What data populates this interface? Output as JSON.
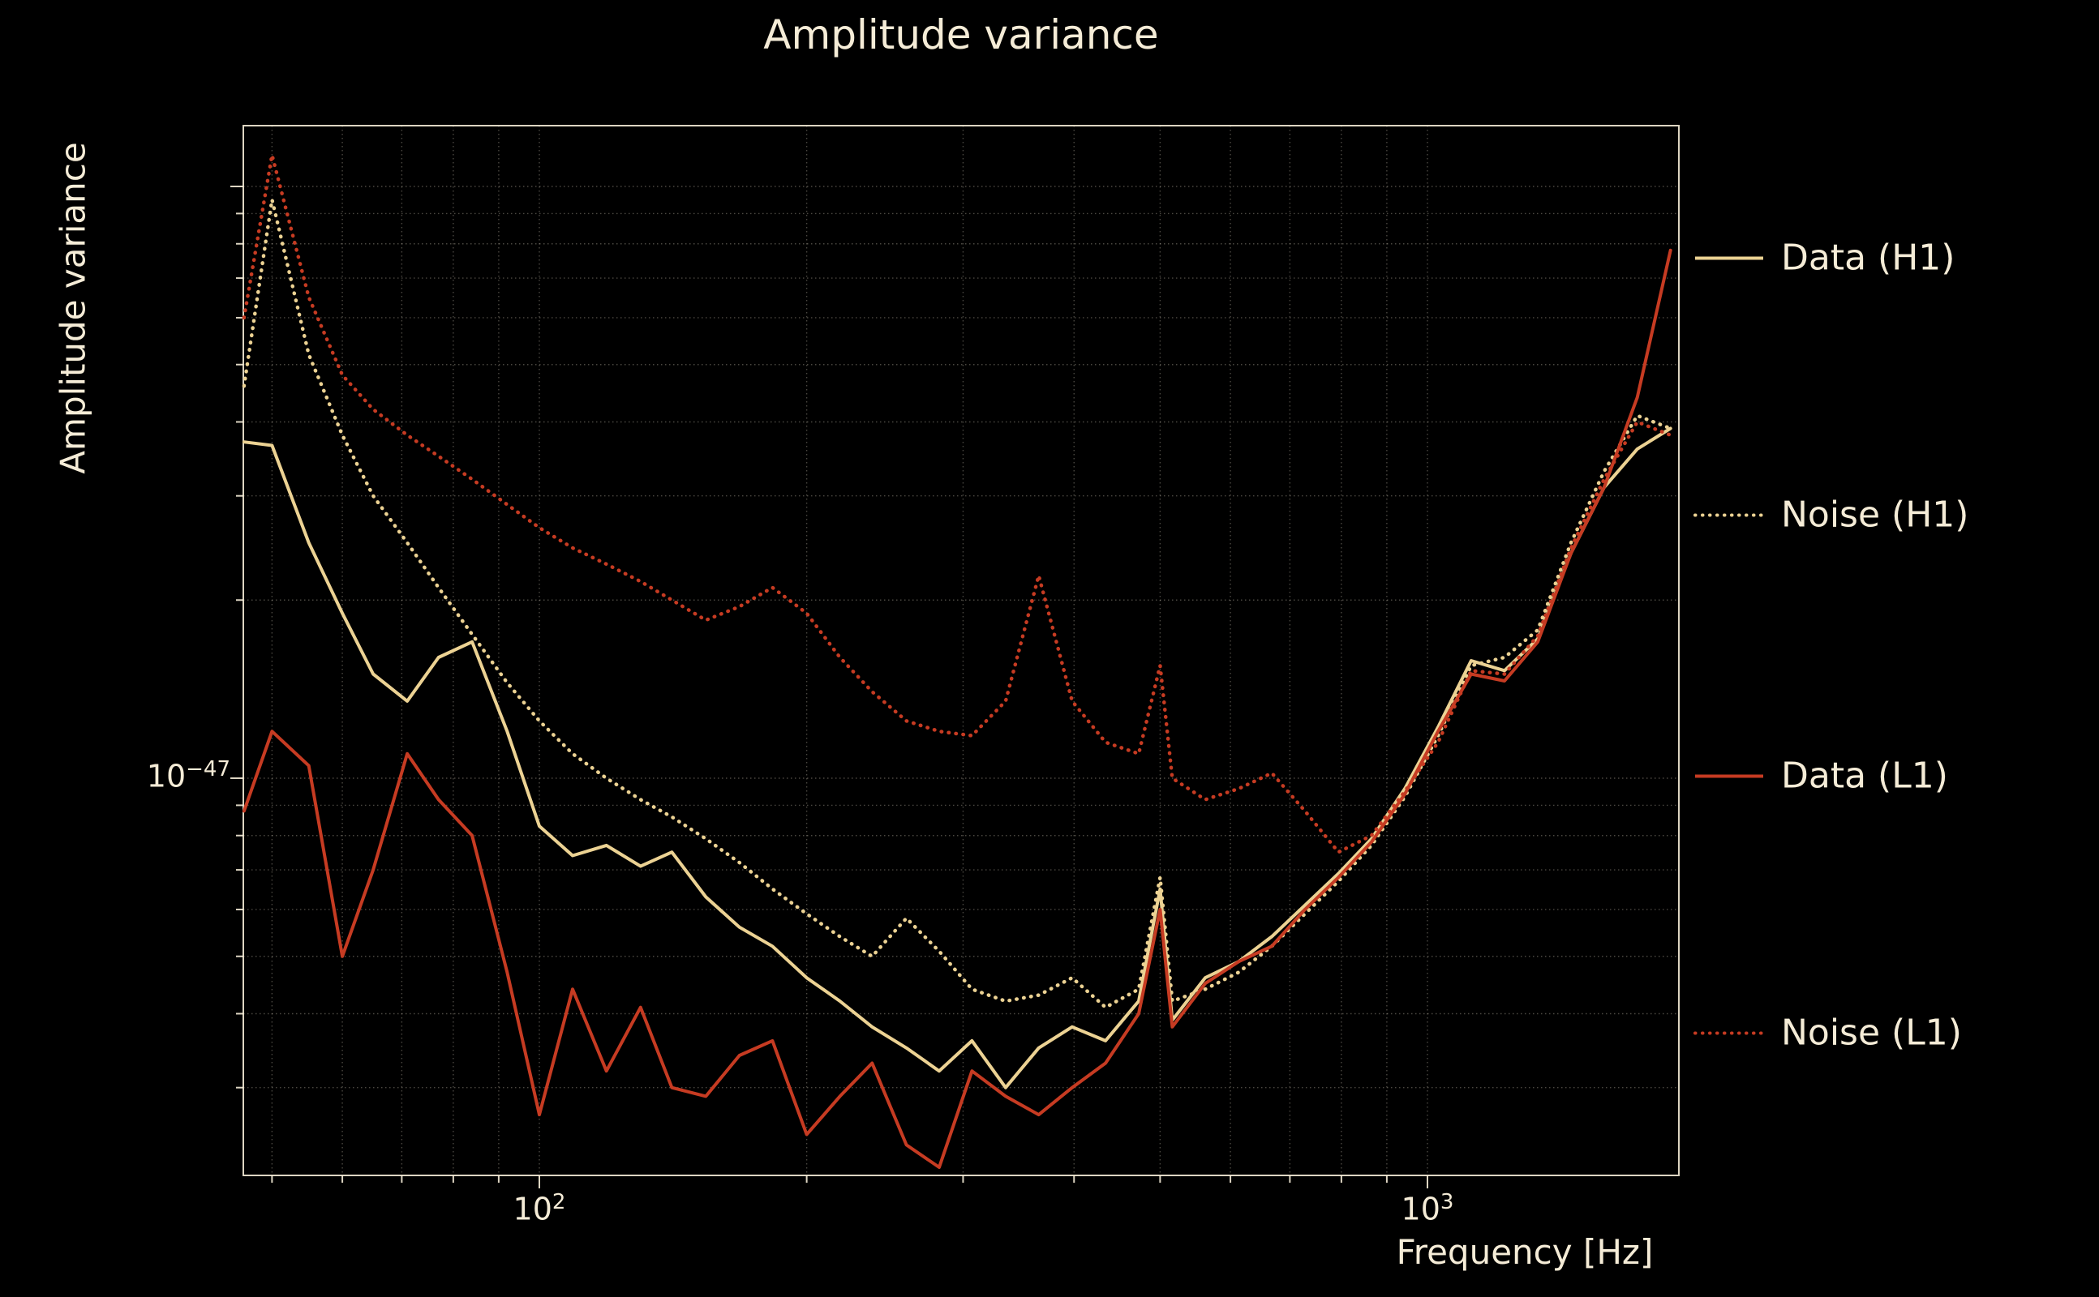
{
  "colors": {
    "background": "#000000",
    "foreground": "#f5ecd7",
    "h1": "#ecd293",
    "l1": "#c63b22"
  },
  "chart_data": {
    "type": "line",
    "title": "Amplitude variance",
    "xlabel": "Frequency [Hz]",
    "ylabel": "Amplitude variance",
    "grid": true,
    "legend_position": "right-outside",
    "x_axis": {
      "scale": "log",
      "range_hz": [
        46.5,
        1920
      ],
      "ticks": [
        {
          "value": 100,
          "base": "10",
          "exp": "2"
        },
        {
          "value": 1000,
          "base": "10",
          "exp": "3"
        }
      ]
    },
    "y_axis": {
      "scale": "log",
      "range": [
        2.1e-48,
        1.27e-46
      ],
      "ticks": [
        {
          "value": 1e-47,
          "base": "10",
          "exp": "−47"
        }
      ]
    },
    "value_scale": 1e-48,
    "x_hz": [
      46.5,
      50,
      55,
      60,
      65,
      71,
      77,
      84,
      92,
      100,
      109,
      119,
      130,
      141,
      154,
      168,
      183,
      200,
      218,
      237,
      259,
      282,
      307,
      335,
      365,
      398,
      434,
      473,
      500,
      516,
      562,
      613,
      668,
      728,
      794,
      865,
      943,
      1028,
      1120,
      1221,
      1331,
      1451,
      1581,
      1723,
      1878
    ],
    "series": [
      {
        "label": "Data (H1)",
        "color_key": "h1",
        "style": "solid",
        "values": [
          37,
          36.5,
          25,
          19,
          15,
          13.5,
          16,
          17,
          12,
          8.3,
          7.4,
          7.7,
          7.1,
          7.5,
          6.3,
          5.6,
          5.2,
          4.6,
          4.2,
          3.8,
          3.5,
          3.2,
          3.6,
          3.0,
          3.5,
          3.8,
          3.6,
          4.2,
          6.5,
          3.9,
          4.6,
          4.9,
          5.4,
          6.1,
          6.9,
          7.9,
          9.6,
          12.2,
          15.8,
          15.2,
          17.2,
          24,
          31,
          36,
          39
        ]
      },
      {
        "label": "Noise (H1)",
        "color_key": "h1",
        "style": "dotted",
        "values": [
          46,
          95,
          52,
          38,
          30,
          25,
          21,
          17.5,
          14.5,
          12.5,
          11,
          10,
          9.2,
          8.6,
          7.9,
          7.2,
          6.5,
          5.9,
          5.4,
          5.0,
          5.8,
          5.1,
          4.4,
          4.2,
          4.3,
          4.6,
          4.1,
          4.4,
          6.8,
          4.2,
          4.4,
          4.7,
          5.2,
          5.9,
          6.7,
          7.7,
          9.3,
          11.8,
          15.5,
          16.0,
          17.8,
          25,
          33,
          41,
          39
        ]
      },
      {
        "label": "Data (L1)",
        "color_key": "l1",
        "style": "solid",
        "values": [
          8.8,
          12,
          10.5,
          5.0,
          7.0,
          11,
          9.2,
          8.0,
          4.7,
          2.7,
          4.4,
          3.2,
          4.1,
          3.0,
          2.9,
          3.4,
          3.6,
          2.5,
          2.9,
          3.3,
          2.4,
          2.2,
          3.2,
          2.9,
          2.7,
          3.0,
          3.3,
          4.0,
          6.0,
          3.8,
          4.5,
          4.9,
          5.2,
          6.0,
          6.8,
          7.8,
          9.4,
          12.0,
          15.0,
          14.6,
          17.0,
          24,
          31,
          44,
          78
        ]
      },
      {
        "label": "Noise (L1)",
        "color_key": "l1",
        "style": "dotted",
        "values": [
          60,
          113,
          65,
          48,
          42,
          38,
          35,
          32,
          29,
          26.5,
          24.5,
          23,
          21.5,
          20,
          18.5,
          19.5,
          21,
          19,
          16,
          14,
          12.5,
          12,
          11.8,
          13.5,
          22,
          13.5,
          11.5,
          11,
          15.5,
          10,
          9.2,
          9.6,
          10.2,
          8.8,
          7.5,
          8.0,
          9.5,
          11.5,
          15.2,
          15.0,
          17.4,
          24.5,
          32,
          40,
          38
        ]
      }
    ]
  }
}
